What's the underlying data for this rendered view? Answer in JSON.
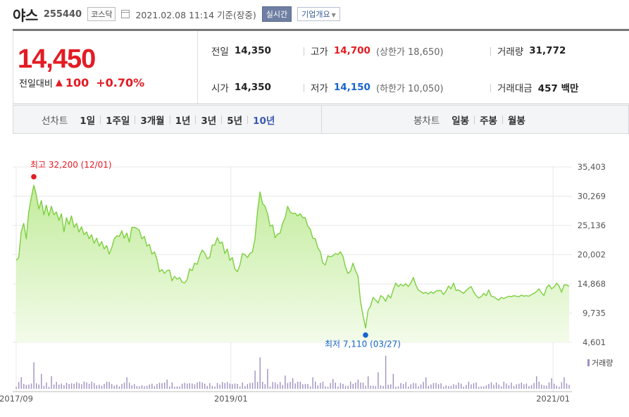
{
  "header": {
    "title": "야스",
    "code": "255440",
    "market": "코스닥",
    "date_text": "2021.02.08 11:14 기준(장중)",
    "realtime_label": "실시간",
    "overview_label": "기업개요"
  },
  "quote": {
    "price": "14,450",
    "change_label": "전일대비",
    "change_arrow": "▲",
    "change": "100",
    "change_pct": "+0.70%",
    "prev_close_label": "전일",
    "prev_close": "14,350",
    "open_label": "시가",
    "open": "14,350",
    "high_label": "고가",
    "high": "14,700",
    "upper_limit_text": "(상한가 18,650)",
    "low_label": "저가",
    "low": "14,150",
    "lower_limit_text": "(하한가 10,050)",
    "volume_label": "거래량",
    "volume": "31,772",
    "amount_label": "거래대금",
    "amount": "457 백만"
  },
  "tabs": {
    "line_chart_label": "선차트",
    "periods": [
      "1일",
      "1주일",
      "3개월",
      "1년",
      "3년",
      "5년",
      "10년"
    ],
    "active_period": "10년",
    "candle_chart_label": "봉차트",
    "candles": [
      "일봉",
      "주봉",
      "월봉"
    ]
  },
  "colors": {
    "up": "#e31b23",
    "down": "#1764ce",
    "line": "#7ccf3e",
    "area_top": "#c2ec9c",
    "area_bottom": "#f3fbea",
    "volume": "#9f8fc0"
  },
  "chart_data": {
    "type": "area",
    "yticks": [
      "35,403",
      "30,269",
      "25,136",
      "20,002",
      "14,868",
      "9,735",
      "4,601"
    ],
    "ylim": [
      4601,
      35403
    ],
    "xticks": [
      {
        "label": "2017/09",
        "x": 0
      },
      {
        "label": "2019/01",
        "x": 16
      },
      {
        "label": "2021/01",
        "x": 40
      }
    ],
    "x_range": [
      0,
      41.2
    ],
    "series": [
      {
        "values": [
          19000,
          19500,
          24000,
          25500,
          22800,
          27500,
          30000,
          32200,
          30500,
          28000,
          29500,
          27000,
          28700,
          26800,
          28500,
          27000,
          27500,
          26000,
          27200,
          24000,
          26500,
          25300,
          26800,
          24800,
          25500,
          24000,
          24900,
          23500,
          24000,
          22800,
          23500,
          22000,
          22900,
          21500,
          22300,
          21000,
          21600,
          20100,
          21200,
          22800,
          23300,
          23200,
          24200,
          22900,
          23800,
          22200,
          24800,
          24800,
          24600,
          24300,
          22800,
          23200,
          21500,
          21800,
          20100,
          20500,
          19200,
          17000,
          17400,
          16700,
          17200,
          17300,
          15400,
          16200,
          15700,
          16000,
          15200,
          15000,
          15600,
          17500,
          17200,
          18500,
          18300,
          19800,
          20800,
          20300,
          19300,
          19500,
          21700,
          21700,
          23000,
          22000,
          22200,
          20200,
          21000,
          19000,
          19500,
          17500,
          17000,
          18200,
          20200,
          20000,
          19500,
          20200,
          20500,
          22800,
          27500,
          31000,
          29000,
          28500,
          27200,
          25000,
          25200,
          23000,
          23600,
          23800,
          25500,
          26500,
          28500,
          27500,
          27200,
          27300,
          26800,
          27200,
          26500,
          26500,
          25000,
          24500,
          22900,
          22800,
          21200,
          20500,
          18500,
          18200,
          19800,
          19600,
          19800,
          20200,
          20000,
          20500,
          19700,
          17900,
          16700,
          17100,
          18500,
          17200,
          16200,
          11800,
          9300,
          7110,
          10200,
          11000,
          12500,
          12000,
          11500,
          12800,
          12500,
          11800,
          12900,
          12400,
          13800,
          15000,
          14400,
          14800,
          14500,
          14900,
          14400,
          15000,
          16000,
          14700,
          13800,
          13500,
          13200,
          13400,
          13100,
          13500,
          13200,
          13600,
          13700,
          13700,
          13000,
          13600,
          14500,
          14000,
          15000,
          13700,
          13800,
          13500,
          13200,
          13700,
          14100,
          14400,
          13500,
          12800,
          12400,
          12600,
          13200,
          12800,
          13800,
          12700,
          12600,
          12300,
          12000,
          12500,
          12300,
          12500,
          12700,
          12600,
          12800,
          12700,
          12600,
          12900,
          12700,
          12800,
          12700,
          13000,
          13200,
          13500,
          14000,
          13300,
          12800,
          14200,
          14700,
          14000,
          14300,
          15000,
          14500,
          13400,
          14700,
          14700,
          14450
        ]
      }
    ],
    "annotations": [
      {
        "text": "최고 32,200 (12/01)",
        "value": 32200,
        "index": 7
      },
      {
        "text": "최저 7,110 (03/27)",
        "value": 7110,
        "index": 139
      }
    ],
    "volume_legend": "거래량",
    "volume_spikes": [
      {
        "index": 2,
        "v": 0.35
      },
      {
        "index": 7,
        "v": 0.8
      },
      {
        "index": 10,
        "v": 0.45
      },
      {
        "index": 14,
        "v": 0.38
      },
      {
        "index": 44,
        "v": 0.35
      },
      {
        "index": 60,
        "v": 0.28
      },
      {
        "index": 95,
        "v": 0.55
      },
      {
        "index": 97,
        "v": 0.95
      },
      {
        "index": 100,
        "v": 0.6
      },
      {
        "index": 107,
        "v": 0.4
      },
      {
        "index": 110,
        "v": 0.32
      },
      {
        "index": 118,
        "v": 0.35
      },
      {
        "index": 126,
        "v": 0.3
      },
      {
        "index": 136,
        "v": 0.28
      },
      {
        "index": 140,
        "v": 0.38
      },
      {
        "index": 144,
        "v": 0.5
      },
      {
        "index": 147,
        "v": 1.0
      },
      {
        "index": 150,
        "v": 0.45
      },
      {
        "index": 163,
        "v": 0.35
      },
      {
        "index": 207,
        "v": 0.38
      },
      {
        "index": 213,
        "v": 0.32
      },
      {
        "index": 218,
        "v": 0.35
      }
    ]
  }
}
